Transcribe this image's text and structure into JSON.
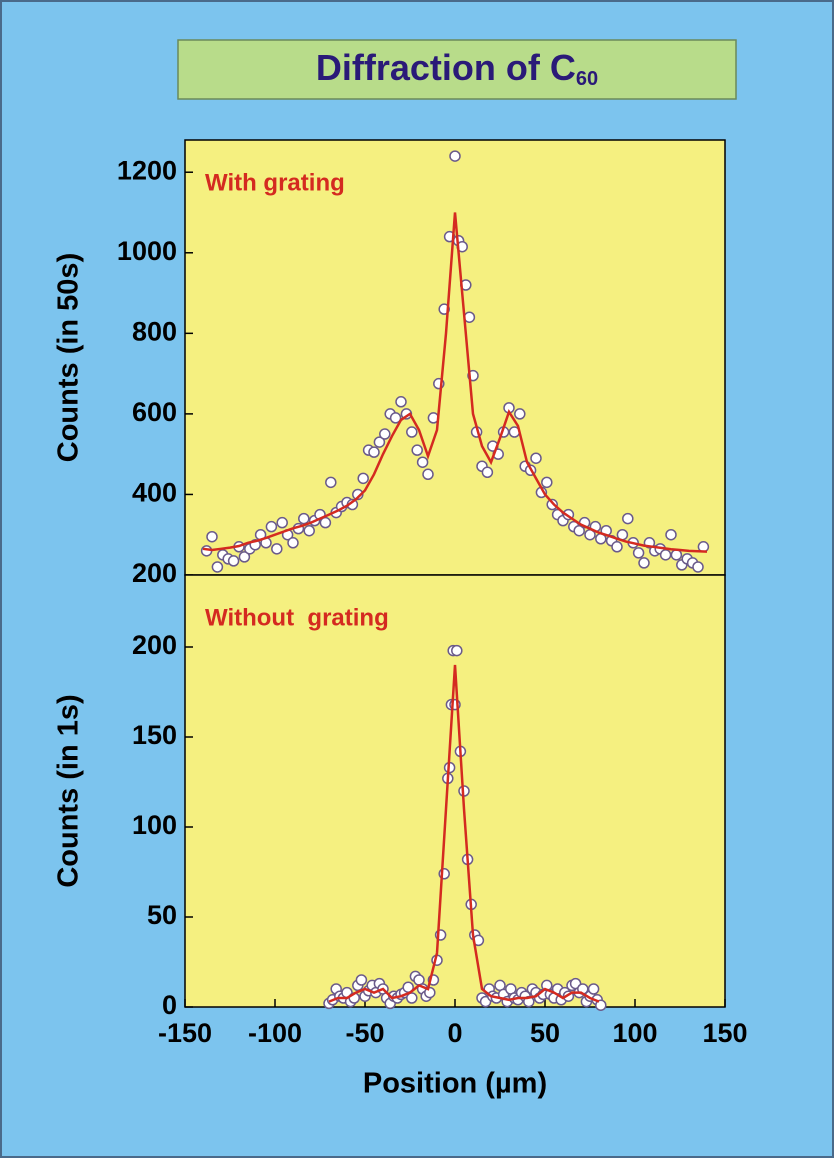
{
  "title": "Diffraction of C",
  "title_subscript": "60",
  "chart_data": [
    {
      "type": "scatter",
      "annotation": "With grating",
      "ylabel": "Counts (in 50s)",
      "xlim": [
        -150,
        150
      ],
      "ylim": [
        200,
        1280
      ],
      "yticks": [
        200,
        400,
        600,
        800,
        1000,
        1200
      ],
      "marker_color": "#ffffff",
      "marker_edge": "#6a5a8a",
      "fit_color": "#d42a20",
      "x": [
        -138,
        -135,
        -132,
        -129,
        -126,
        -123,
        -120,
        -117,
        -114,
        -111,
        -108,
        -105,
        -102,
        -99,
        -96,
        -93,
        -90,
        -87,
        -84,
        -81,
        -78,
        -75,
        -72,
        -69,
        -66,
        -63,
        -60,
        -57,
        -54,
        -51,
        -48,
        -45,
        -42,
        -39,
        -36,
        -33,
        -30,
        -27,
        -24,
        -21,
        -18,
        -15,
        -12,
        -9,
        -6,
        -3,
        0,
        2,
        4,
        6,
        8,
        10,
        12,
        15,
        18,
        21,
        24,
        27,
        30,
        33,
        36,
        39,
        42,
        45,
        48,
        51,
        54,
        57,
        60,
        63,
        66,
        69,
        72,
        75,
        78,
        81,
        84,
        87,
        90,
        93,
        96,
        99,
        102,
        105,
        108,
        111,
        114,
        117,
        120,
        123,
        126,
        129,
        132,
        135,
        138
      ],
      "values": [
        260,
        295,
        220,
        250,
        240,
        235,
        270,
        245,
        265,
        275,
        300,
        280,
        320,
        265,
        330,
        300,
        280,
        315,
        340,
        310,
        335,
        350,
        330,
        430,
        355,
        370,
        380,
        375,
        400,
        440,
        510,
        505,
        530,
        550,
        600,
        590,
        630,
        600,
        555,
        510,
        480,
        450,
        590,
        675,
        860,
        1040,
        1240,
        1030,
        1015,
        920,
        840,
        695,
        555,
        470,
        455,
        520,
        500,
        555,
        615,
        555,
        600,
        470,
        460,
        490,
        405,
        430,
        375,
        350,
        335,
        350,
        320,
        310,
        330,
        300,
        320,
        290,
        310,
        285,
        270,
        300,
        340,
        280,
        255,
        230,
        280,
        260,
        265,
        250,
        300,
        250,
        225,
        240,
        230,
        220,
        270
      ],
      "fit_x": [
        -140,
        -135,
        -130,
        -125,
        -120,
        -115,
        -110,
        -105,
        -100,
        -95,
        -90,
        -85,
        -80,
        -75,
        -70,
        -65,
        -60,
        -55,
        -50,
        -45,
        -40,
        -35,
        -30,
        -25,
        -20,
        -15,
        -10,
        -5,
        0,
        5,
        10,
        15,
        20,
        25,
        30,
        35,
        40,
        45,
        50,
        55,
        60,
        65,
        70,
        75,
        80,
        85,
        90,
        95,
        100,
        105,
        110,
        115,
        120,
        125,
        130,
        135,
        140
      ],
      "fit_values": [
        265,
        262,
        265,
        268,
        272,
        280,
        285,
        292,
        300,
        308,
        316,
        322,
        330,
        340,
        350,
        360,
        372,
        388,
        410,
        450,
        500,
        545,
        585,
        600,
        560,
        495,
        560,
        800,
        1100,
        850,
        600,
        520,
        480,
        540,
        605,
        570,
        480,
        440,
        400,
        375,
        355,
        340,
        325,
        315,
        305,
        298,
        290,
        283,
        278,
        273,
        270,
        267,
        264,
        262,
        260,
        259,
        258
      ]
    },
    {
      "type": "scatter",
      "annotation": "Without  grating",
      "ylabel": "Counts (in 1s)",
      "xlabel": "Position (µm)",
      "xlim": [
        -150,
        150
      ],
      "xticks": [
        -150,
        -100,
        -50,
        0,
        50,
        100,
        150
      ],
      "ylim": [
        0,
        240
      ],
      "yticks": [
        0,
        50,
        100,
        150,
        200
      ],
      "marker_color": "#ffffff",
      "marker_edge": "#6a5a8a",
      "fit_color": "#d42a20",
      "x": [
        -70,
        -68,
        -66,
        -64,
        -62,
        -60,
        -58,
        -56,
        -54,
        -52,
        -50,
        -48,
        -46,
        -44,
        -42,
        -40,
        -38,
        -36,
        -34,
        -32,
        -30,
        -28,
        -26,
        -24,
        -22,
        -20,
        -18,
        -16,
        -14,
        -12,
        -10,
        -8,
        -6,
        -4,
        -3,
        -2,
        -1,
        0,
        1,
        3,
        5,
        7,
        9,
        11,
        13,
        15,
        17,
        19,
        21,
        23,
        25,
        27,
        29,
        31,
        33,
        35,
        37,
        39,
        41,
        43,
        45,
        47,
        49,
        51,
        53,
        55,
        57,
        59,
        61,
        63,
        65,
        67,
        69,
        71,
        73,
        75,
        77,
        79,
        81
      ],
      "values": [
        2,
        4,
        10,
        6,
        5,
        8,
        3,
        5,
        12,
        15,
        6,
        9,
        12,
        8,
        13,
        10,
        5,
        2,
        6,
        5,
        7,
        8,
        11,
        5,
        17,
        15,
        10,
        6,
        8,
        15,
        26,
        40,
        74,
        127,
        133,
        168,
        198,
        168,
        198,
        142,
        120,
        82,
        57,
        40,
        37,
        5,
        3,
        10,
        6,
        5,
        12,
        7,
        3,
        10,
        5,
        4,
        8,
        6,
        3,
        10,
        8,
        5,
        7,
        12,
        7,
        5,
        10,
        4,
        8,
        6,
        12,
        13,
        8,
        10,
        3,
        6,
        10,
        4,
        1
      ],
      "fit_x": [
        -70,
        -65,
        -60,
        -55,
        -50,
        -45,
        -40,
        -35,
        -30,
        -25,
        -20,
        -15,
        -10,
        -5,
        0,
        5,
        10,
        15,
        20,
        25,
        30,
        35,
        40,
        45,
        50,
        55,
        60,
        65,
        70,
        75,
        80
      ],
      "fit_values": [
        3,
        5,
        5,
        8,
        10,
        8,
        10,
        5,
        6,
        8,
        12,
        10,
        30,
        110,
        190,
        110,
        40,
        10,
        6,
        5,
        4,
        5,
        5,
        6,
        10,
        8,
        5,
        8,
        8,
        5,
        3
      ]
    }
  ]
}
